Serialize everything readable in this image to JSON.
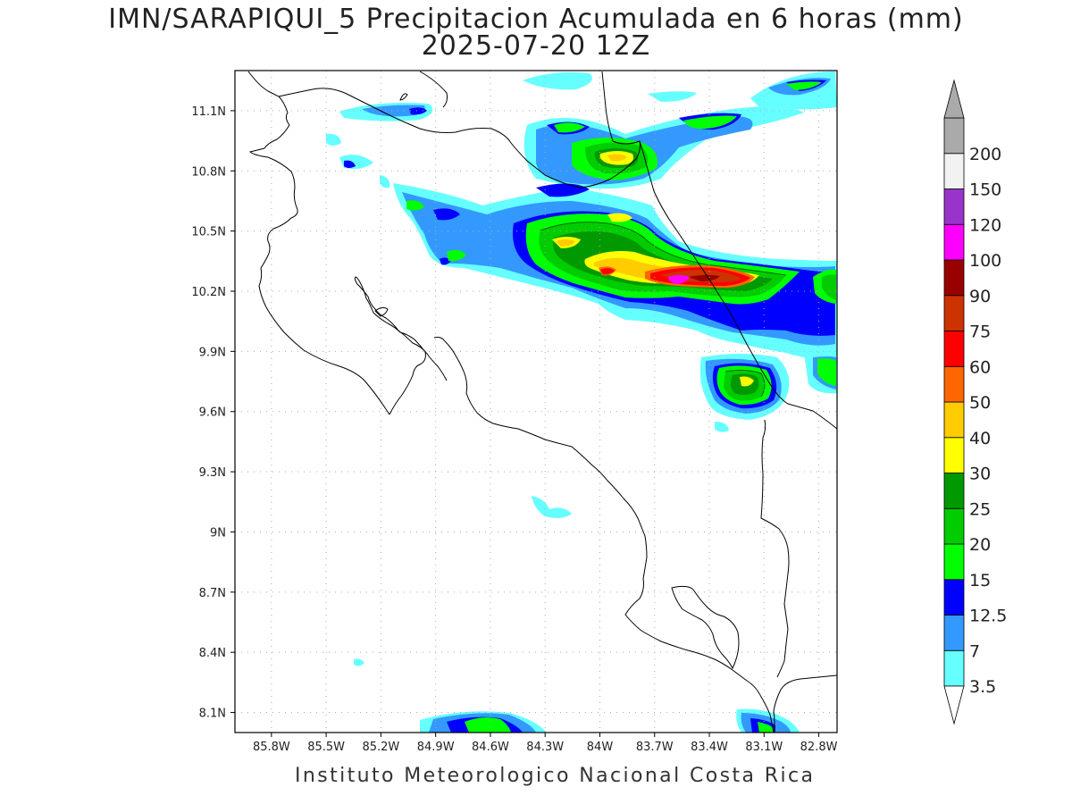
{
  "title": {
    "line1": "IMN/SARAPIQUI_5 Precipitacion Acumulada en 6 horas (mm)",
    "line2": "2025-07-20 12Z"
  },
  "footer": "Instituto Meteorologico Nacional Costa Rica",
  "map": {
    "lon_ticks": [
      "85.8W",
      "85.5W",
      "85.2W",
      "84.9W",
      "84.6W",
      "84.3W",
      "84W",
      "83.7W",
      "83.4W",
      "83.1W",
      "82.8W"
    ],
    "lat_ticks": [
      "11.1N",
      "10.8N",
      "10.5N",
      "10.2N",
      "9.9N",
      "9.6N",
      "9.3N",
      "9N",
      "8.7N",
      "8.4N",
      "8.1N"
    ],
    "lon_range": [
      -86.0,
      -82.7
    ],
    "lat_range": [
      8.0,
      11.3
    ],
    "grid": true
  },
  "colorbar": {
    "labels": [
      "3.5",
      "7",
      "12.5",
      "15",
      "20",
      "25",
      "30",
      "40",
      "50",
      "60",
      "75",
      "90",
      "100",
      "120",
      "150",
      "200"
    ],
    "colors": [
      "#66ffff",
      "#3399ff",
      "#0000ff",
      "#00ff00",
      "#00cc00",
      "#009900",
      "#ffff00",
      "#ffcc00",
      "#ff6600",
      "#ff0000",
      "#cc3300",
      "#990000",
      "#ff00ff",
      "#9933cc",
      "#f2f2f2",
      "#aaaaaa"
    ],
    "extend": "both"
  }
}
